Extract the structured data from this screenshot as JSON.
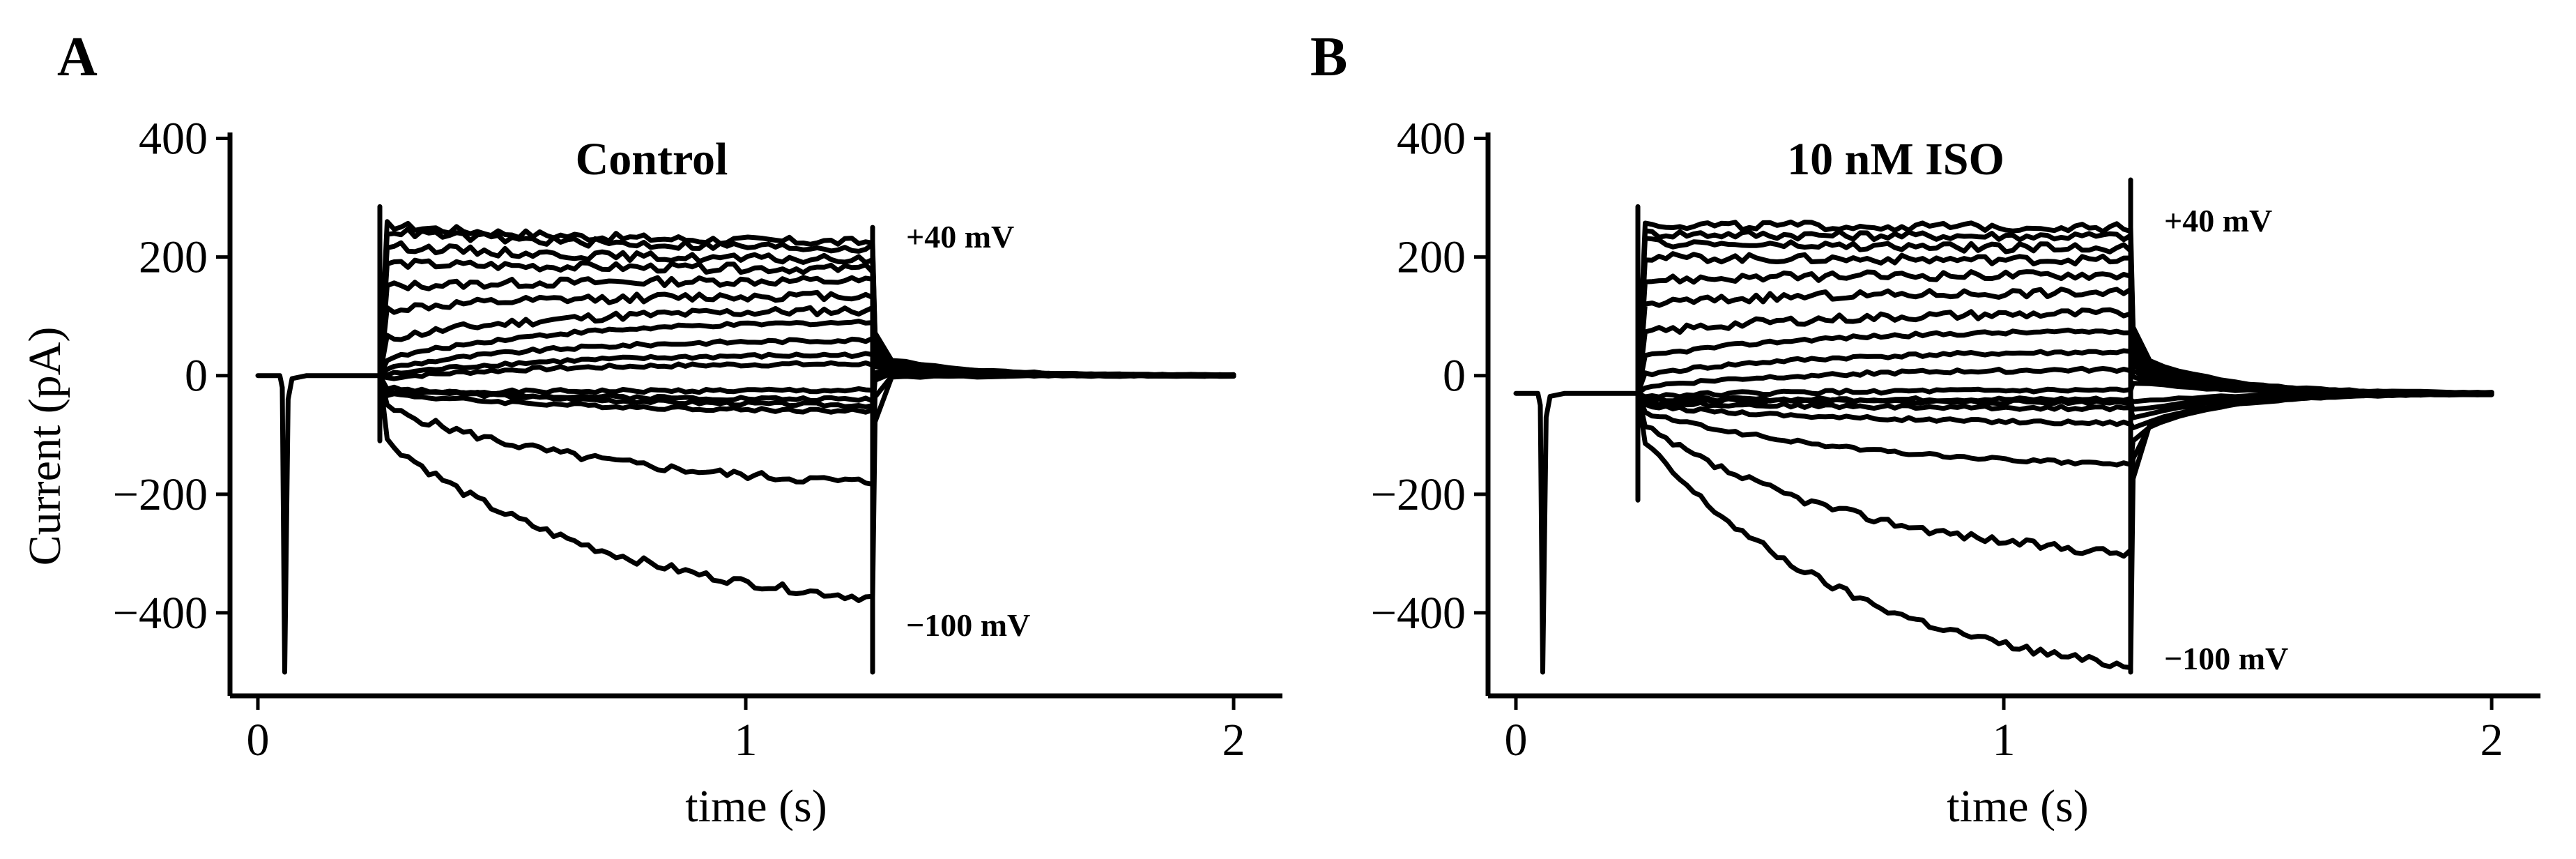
{
  "chart_data": [
    {
      "type": "line",
      "panel_label": "A",
      "title": "Control",
      "xlabel": "time (s)",
      "ylabel": "Current (pA)",
      "xlim": [
        -0.05,
        2.1
      ],
      "ylim": [
        -540,
        410
      ],
      "xticks": [
        0,
        1,
        2
      ],
      "xtick_labels": [
        "0",
        "1",
        "2"
      ],
      "yticks": [
        400,
        200,
        0,
        -200,
        -400
      ],
      "ytick_labels": [
        "400",
        "200",
        "0",
        "−200",
        "−400"
      ],
      "grid": false,
      "annotations": [
        "+40 mV",
        "−100 mV"
      ],
      "step_start_s": 0.25,
      "step_end_s": 1.26,
      "holding_current_pA": 0,
      "transient_min_pA": -500,
      "series": [
        {
          "start": -30,
          "end": -25,
          "tail": 12
        },
        {
          "start": -25,
          "end": -40,
          "tail": 10
        },
        {
          "start": -20,
          "end": -50,
          "tail": 8
        },
        {
          "start": -30,
          "end": -60,
          "tail": 5
        },
        {
          "start": -50,
          "end": -180,
          "tail": 0
        },
        {
          "start": -100,
          "end": -375,
          "tail": -4
        },
        {
          "start": -5,
          "end": 20,
          "tail": 14
        },
        {
          "start": 0,
          "end": 35,
          "tail": 16
        },
        {
          "start": 10,
          "end": 60,
          "tail": 18
        },
        {
          "start": 25,
          "end": 90,
          "tail": 20
        },
        {
          "start": 60,
          "end": 110,
          "tail": 22
        },
        {
          "start": 110,
          "end": 135,
          "tail": 24
        },
        {
          "start": 150,
          "end": 160,
          "tail": 26
        },
        {
          "start": 190,
          "end": 180,
          "tail": 28
        },
        {
          "start": 220,
          "end": 195,
          "tail": 30
        },
        {
          "start": 245,
          "end": 215,
          "tail": 32
        },
        {
          "start": 255,
          "end": 225,
          "tail": 34
        }
      ]
    },
    {
      "type": "line",
      "panel_label": "B",
      "title": "10 nM ISO",
      "xlabel": "time (s)",
      "ylabel": "",
      "xlim": [
        -0.05,
        2.1
      ],
      "ylim": [
        -540,
        410
      ],
      "xticks": [
        0,
        1,
        2
      ],
      "xtick_labels": [
        "0",
        "1",
        "2"
      ],
      "yticks": [
        400,
        200,
        0,
        -200,
        -400
      ],
      "ytick_labels": [
        "400",
        "200",
        "0",
        "−200",
        "−400"
      ],
      "grid": false,
      "annotations": [
        "+40 mV",
        "−100 mV"
      ],
      "step_start_s": 0.25,
      "step_end_s": 1.26,
      "holding_current_pA": -30,
      "transient_min_pA": -500,
      "series": [
        {
          "start": -40,
          "end": -40,
          "tail": -45
        },
        {
          "start": -40,
          "end": -45,
          "tail": -60
        },
        {
          "start": -45,
          "end": -55,
          "tail": -75
        },
        {
          "start": -50,
          "end": -80,
          "tail": -90
        },
        {
          "start": -60,
          "end": -150,
          "tail": -100
        },
        {
          "start": -80,
          "end": -300,
          "tail": -100
        },
        {
          "start": -100,
          "end": -490,
          "tail": -95
        },
        {
          "start": -35,
          "end": -25,
          "tail": -10
        },
        {
          "start": -20,
          "end": 10,
          "tail": -5
        },
        {
          "start": 0,
          "end": 40,
          "tail": 0
        },
        {
          "start": 30,
          "end": 75,
          "tail": 5
        },
        {
          "start": 70,
          "end": 105,
          "tail": 10
        },
        {
          "start": 120,
          "end": 140,
          "tail": 15
        },
        {
          "start": 160,
          "end": 170,
          "tail": 20
        },
        {
          "start": 200,
          "end": 195,
          "tail": 25
        },
        {
          "start": 225,
          "end": 215,
          "tail": 30
        },
        {
          "start": 240,
          "end": 235,
          "tail": 35
        },
        {
          "start": 255,
          "end": 250,
          "tail": 40
        }
      ]
    }
  ]
}
